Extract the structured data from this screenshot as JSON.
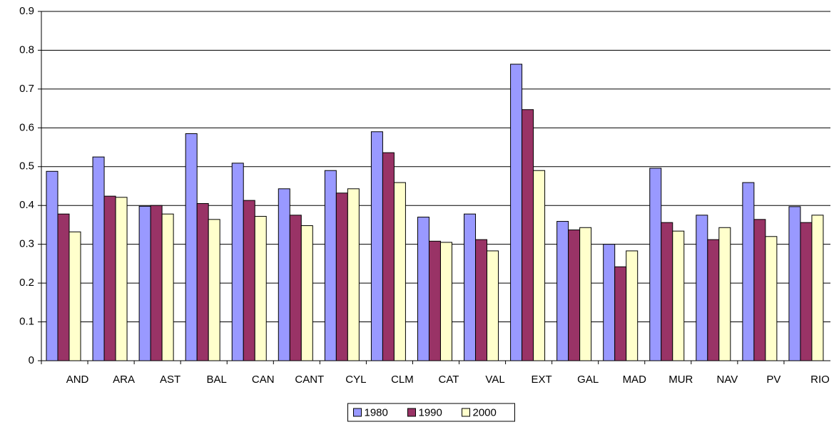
{
  "chart_data": {
    "type": "bar",
    "categories": [
      "AND",
      "ARA",
      "AST",
      "BAL",
      "CAN",
      "CANT",
      "CYL",
      "CLM",
      "CAT",
      "VAL",
      "EXT",
      "GAL",
      "MAD",
      "MUR",
      "NAV",
      "PV",
      "RIO"
    ],
    "series": [
      {
        "name": "1980",
        "color": "#9999ff",
        "values": [
          0.488,
          0.525,
          0.398,
          0.585,
          0.509,
          0.443,
          0.49,
          0.59,
          0.37,
          0.378,
          0.764,
          0.359,
          0.3,
          0.496,
          0.375,
          0.459,
          0.397
        ]
      },
      {
        "name": "1990",
        "color": "#993366",
        "values": [
          0.378,
          0.424,
          0.4,
          0.405,
          0.413,
          0.375,
          0.432,
          0.536,
          0.308,
          0.312,
          0.647,
          0.337,
          0.242,
          0.356,
          0.312,
          0.364,
          0.356
        ]
      },
      {
        "name": "2000",
        "color": "#ffffcc",
        "values": [
          0.332,
          0.421,
          0.378,
          0.364,
          0.372,
          0.348,
          0.443,
          0.459,
          0.305,
          0.283,
          0.49,
          0.343,
          0.283,
          0.334,
          0.343,
          0.32,
          0.375
        ]
      }
    ],
    "ylim": [
      0,
      0.9
    ],
    "yticks": [
      0,
      0.1,
      0.2,
      0.3,
      0.4,
      0.5,
      0.6,
      0.7,
      0.8,
      0.9
    ],
    "grid": true,
    "legend": "bottom"
  }
}
